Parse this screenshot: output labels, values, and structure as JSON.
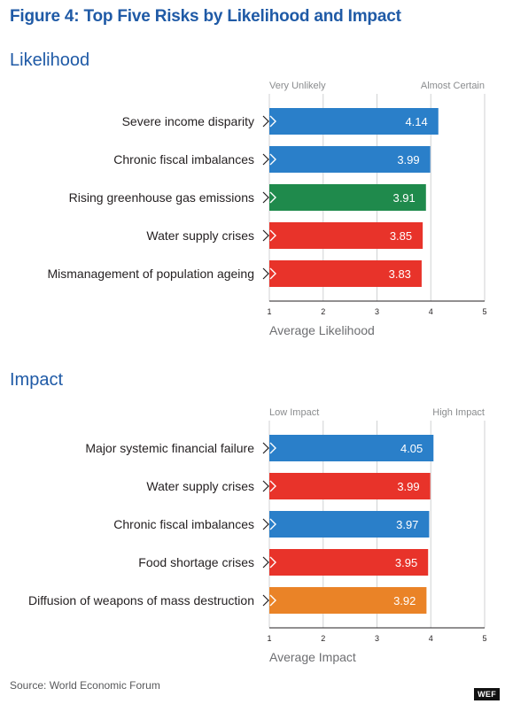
{
  "title": "Figure 4: Top Five Risks by Likelihood and Impact",
  "source": "Source: World Economic Forum",
  "badge": "WEF",
  "colors": {
    "economic": "#2a7fc9",
    "environmental": "#1f8a4c",
    "societal": "#e8332a",
    "geopolitical": "#ea8327",
    "title": "#1f5aa6"
  },
  "chart_data": [
    {
      "type": "bar",
      "orientation": "horizontal",
      "title": "Likelihood",
      "xlabel": "Average Likelihood",
      "scale_low_label": "Very Unlikely",
      "scale_high_label": "Almost Certain",
      "xlim": [
        1,
        5
      ],
      "ticks": [
        "1",
        "2",
        "3",
        "4",
        "5"
      ],
      "grid": true,
      "categories": [
        "Severe income disparity",
        "Chronic fiscal imbalances",
        "Rising greenhouse gas emissions",
        "Water supply crises",
        "Mismanagement of population ageing"
      ],
      "values": [
        4.14,
        3.99,
        3.91,
        3.85,
        3.83
      ],
      "labels": [
        "4.14",
        "3.99",
        "3.91",
        "3.85",
        "3.83"
      ],
      "bar_colors": [
        "#2a7fc9",
        "#2a7fc9",
        "#1f8a4c",
        "#e8332a",
        "#e8332a"
      ]
    },
    {
      "type": "bar",
      "orientation": "horizontal",
      "title": "Impact",
      "xlabel": "Average Impact",
      "scale_low_label": "Low Impact",
      "scale_high_label": "High Impact",
      "xlim": [
        1,
        5
      ],
      "ticks": [
        "1",
        "2",
        "3",
        "4",
        "5"
      ],
      "grid": true,
      "categories": [
        "Major systemic financial failure",
        "Water supply crises",
        "Chronic fiscal imbalances",
        "Food shortage crises",
        "Diffusion of weapons of mass destruction"
      ],
      "values": [
        4.05,
        3.99,
        3.97,
        3.95,
        3.92
      ],
      "labels": [
        "4.05",
        "3.99",
        "3.97",
        "3.95",
        "3.92"
      ],
      "bar_colors": [
        "#2a7fc9",
        "#e8332a",
        "#2a7fc9",
        "#e8332a",
        "#ea8327"
      ]
    }
  ]
}
